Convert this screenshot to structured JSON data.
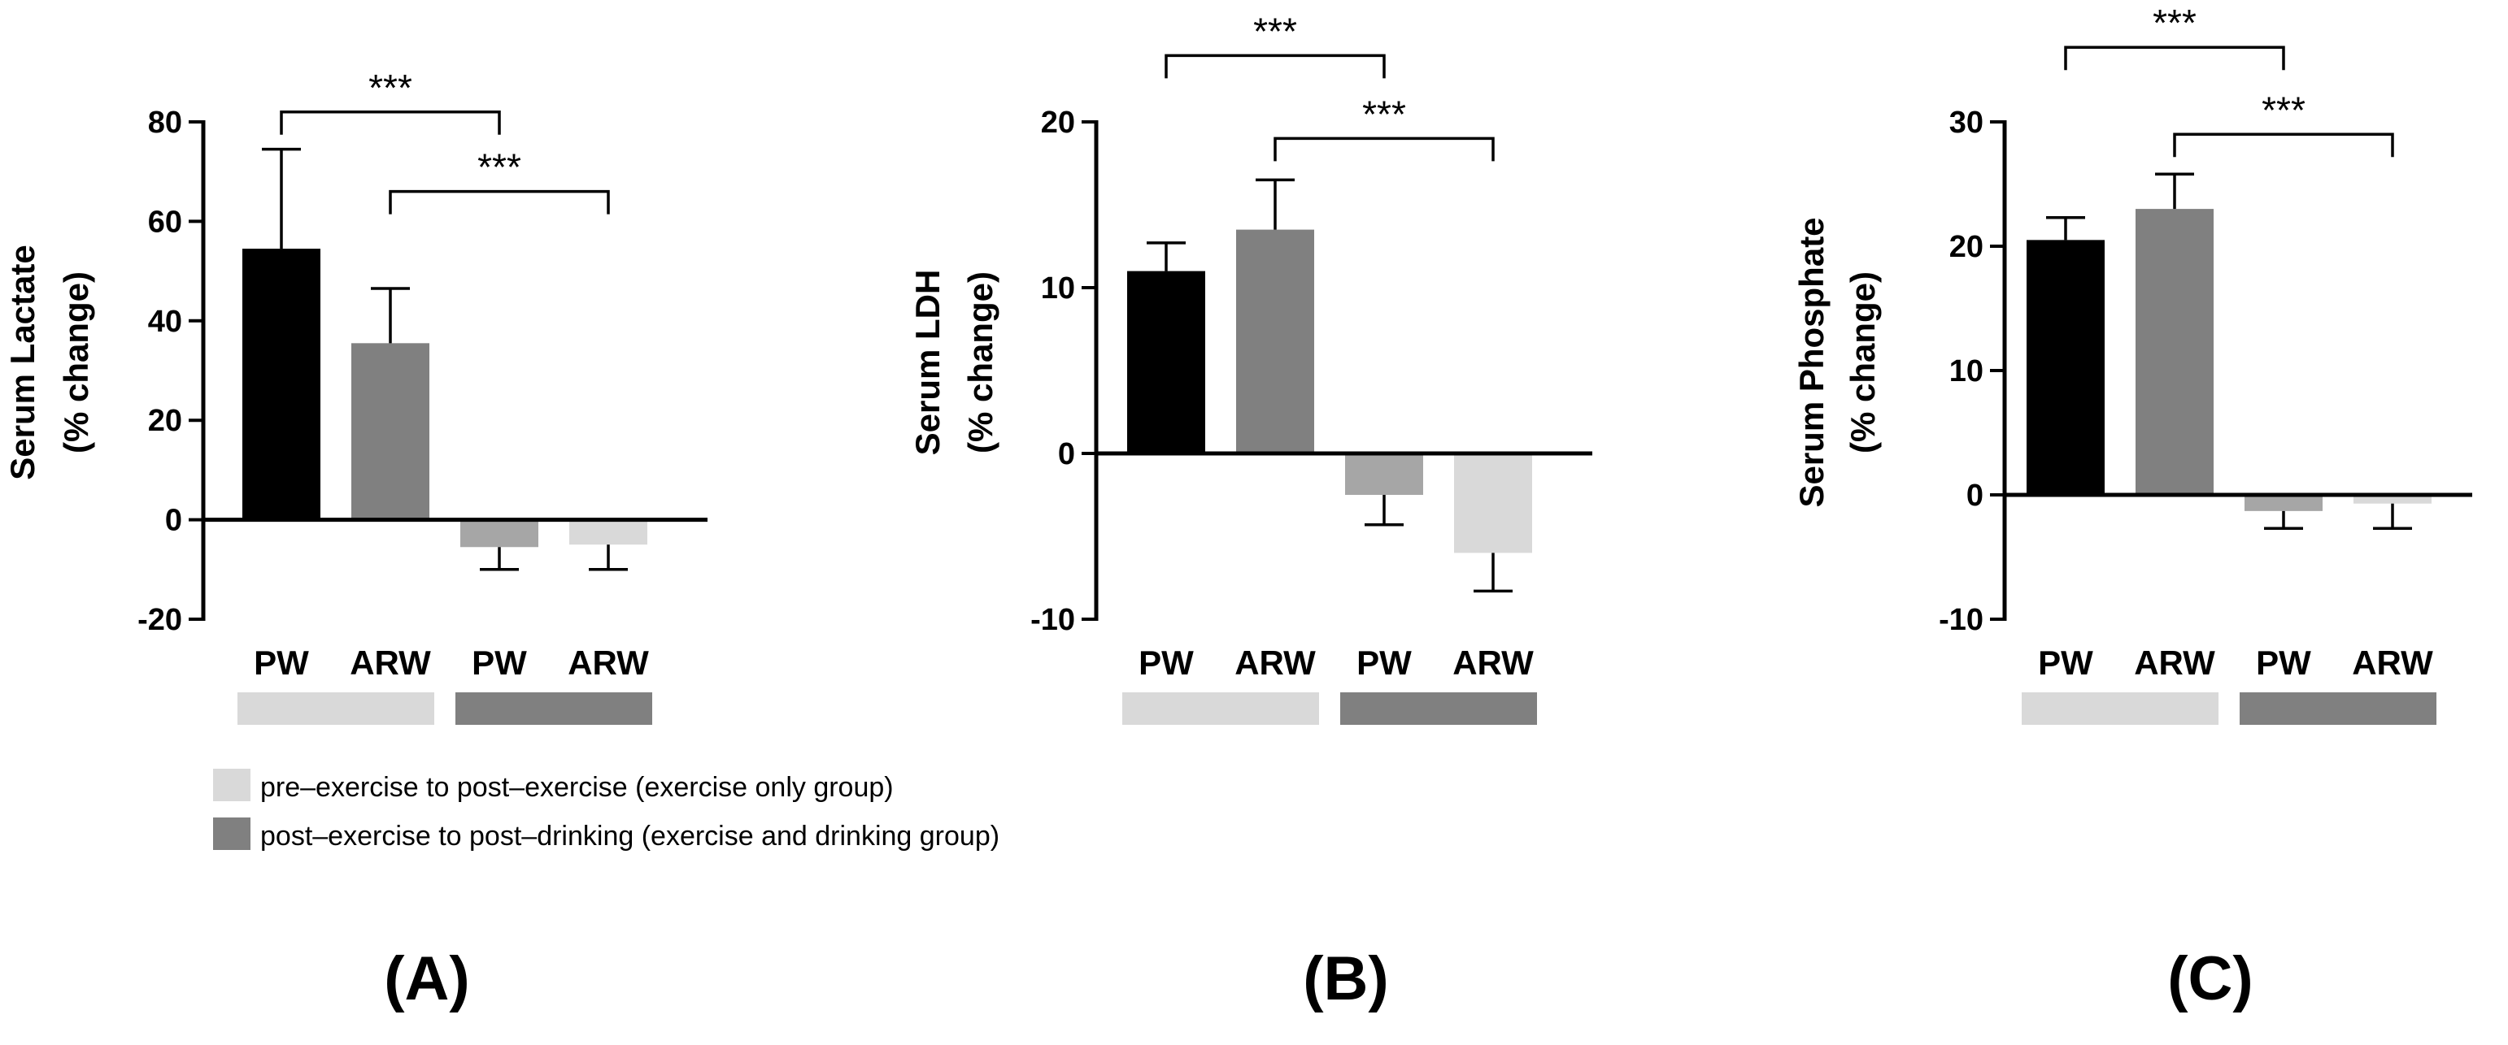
{
  "chart_data": [
    {
      "type": "bar",
      "panel_label": "(A)",
      "ylabel_line1": "Serum Lactate",
      "ylabel_line2": "(% change)",
      "categories": [
        "PW",
        "ARW",
        "PW",
        "ARW"
      ],
      "values": [
        54.5,
        35.5,
        -5.5,
        -5.0
      ],
      "errors": [
        20.0,
        11.0,
        4.5,
        5.0
      ],
      "bar_colors": [
        "#000000",
        "#808080",
        "#a6a6a6",
        "#d9d9d9"
      ],
      "ylim": [
        -20,
        80
      ],
      "yticks": [
        -20,
        0,
        20,
        40,
        60,
        80
      ],
      "significance": [
        {
          "from": 0,
          "to": 2,
          "level": 82,
          "label": "***"
        },
        {
          "from": 1,
          "to": 3,
          "level": 66,
          "label": "***"
        }
      ],
      "group_bars": [
        "#d9d9d9",
        "#808080"
      ]
    },
    {
      "type": "bar",
      "panel_label": "(B)",
      "ylabel_line1": "Serum LDH",
      "ylabel_line2": "(% change)",
      "categories": [
        "PW",
        "ARW",
        "PW",
        "ARW"
      ],
      "values": [
        11.0,
        13.5,
        -2.5,
        -6.0
      ],
      "errors": [
        1.7,
        3.0,
        1.8,
        2.3
      ],
      "bar_colors": [
        "#000000",
        "#808080",
        "#a6a6a6",
        "#d9d9d9"
      ],
      "ylim": [
        -10,
        20
      ],
      "yticks": [
        -10,
        0,
        10,
        20
      ],
      "significance": [
        {
          "from": 0,
          "to": 2,
          "level": 24,
          "label": "***"
        },
        {
          "from": 1,
          "to": 3,
          "level": 19,
          "label": "***"
        }
      ],
      "group_bars": [
        "#d9d9d9",
        "#808080"
      ]
    },
    {
      "type": "bar",
      "panel_label": "(C)",
      "ylabel_line1": "Serum Phosphate",
      "ylabel_line2": "(% change)",
      "categories": [
        "PW",
        "ARW",
        "PW",
        "ARW"
      ],
      "values": [
        20.5,
        23.0,
        -1.3,
        -0.7
      ],
      "errors": [
        1.8,
        2.8,
        1.4,
        2.0
      ],
      "bar_colors": [
        "#000000",
        "#808080",
        "#a6a6a6",
        "#d9d9d9"
      ],
      "ylim": [
        -10,
        30
      ],
      "yticks": [
        -10,
        0,
        10,
        20,
        30
      ],
      "significance": [
        {
          "from": 0,
          "to": 2,
          "level": 36,
          "label": "***"
        },
        {
          "from": 1,
          "to": 3,
          "level": 29,
          "label": "***"
        }
      ],
      "group_bars": [
        "#d9d9d9",
        "#808080"
      ]
    }
  ],
  "legend": [
    {
      "label": "pre–exercise to post–exercise (exercise only group)",
      "color": "#d9d9d9"
    },
    {
      "label": "post–exercise to post–drinking (exercise and drinking group)",
      "color": "#808080"
    }
  ]
}
